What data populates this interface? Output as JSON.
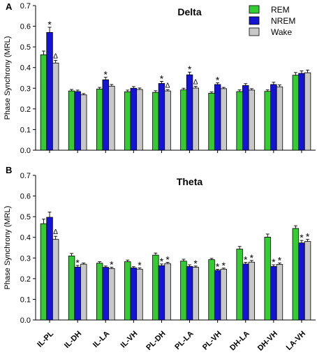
{
  "chart_data": [
    {
      "type": "bar",
      "panel_label": "A",
      "title": "Delta",
      "ylabel": "Phase Synchrony (MRL)",
      "xlabel": "",
      "ylim": [
        0,
        0.7
      ],
      "yticks": [
        "0.0",
        "0.1",
        "0.2",
        "0.3",
        "0.4",
        "0.5",
        "0.6",
        "0.7"
      ],
      "show_x_labels": false,
      "legend": {
        "placement": "top-right"
      },
      "categories": [
        "IL-PL",
        "IL-DH",
        "IL-LA",
        "IL-VH",
        "PL-DH",
        "PL-LA",
        "PL-VH",
        "DH-LA",
        "DH-VH",
        "LA-VH"
      ],
      "series": [
        {
          "name": "REM",
          "color": "#33cc33",
          "values": [
            0.462,
            0.287,
            0.296,
            0.283,
            0.28,
            0.292,
            0.276,
            0.284,
            0.285,
            0.363
          ],
          "errors": [
            0.018,
            0.007,
            0.008,
            0.008,
            0.008,
            0.008,
            0.006,
            0.008,
            0.007,
            0.013
          ],
          "marks": [
            "",
            "",
            "",
            "",
            "",
            "",
            "",
            "",
            "",
            ""
          ]
        },
        {
          "name": "NREM",
          "color": "#1414d2",
          "values": [
            0.57,
            0.284,
            0.341,
            0.3,
            0.323,
            0.365,
            0.318,
            0.313,
            0.318,
            0.372
          ],
          "errors": [
            0.025,
            0.007,
            0.012,
            0.008,
            0.01,
            0.013,
            0.008,
            0.009,
            0.011,
            0.012
          ],
          "marks": [
            "*",
            "",
            "*",
            "",
            "*",
            "*",
            "*",
            "",
            "",
            ""
          ]
        },
        {
          "name": "Wake",
          "color": "#c8c8c8",
          "values": [
            0.422,
            0.268,
            0.31,
            0.294,
            0.287,
            0.301,
            0.298,
            0.291,
            0.307,
            0.375
          ],
          "errors": [
            0.013,
            0.006,
            0.008,
            0.007,
            0.006,
            0.008,
            0.006,
            0.007,
            0.009,
            0.013
          ],
          "marks": [
            "Δ",
            "",
            "",
            "",
            "Δ",
            "Δ",
            "",
            "",
            "",
            ""
          ]
        }
      ]
    },
    {
      "type": "bar",
      "panel_label": "B",
      "title": "Theta",
      "ylabel": "Phase Synchrony (MRL)",
      "xlabel": "",
      "ylim": [
        0,
        0.7
      ],
      "yticks": [
        "0.0",
        "0.1",
        "0.2",
        "0.3",
        "0.4",
        "0.5",
        "0.6",
        "0.7"
      ],
      "show_x_labels": true,
      "categories": [
        "IL-PL",
        "IL-DH",
        "IL-LA",
        "IL-VH",
        "PL-DH",
        "PL-LA",
        "PL-VH",
        "DH-LA",
        "DH-VH",
        "LA-VH"
      ],
      "series": [
        {
          "name": "REM",
          "color": "#33cc33",
          "values": [
            0.466,
            0.31,
            0.275,
            0.282,
            0.314,
            0.285,
            0.292,
            0.343,
            0.401,
            0.443
          ],
          "errors": [
            0.022,
            0.012,
            0.007,
            0.008,
            0.01,
            0.009,
            0.006,
            0.013,
            0.015,
            0.013
          ],
          "marks": [
            "",
            "",
            "",
            "",
            "",
            "",
            "",
            "",
            "",
            ""
          ]
        },
        {
          "name": "NREM",
          "color": "#1414d2",
          "values": [
            0.497,
            0.256,
            0.255,
            0.252,
            0.263,
            0.259,
            0.24,
            0.271,
            0.259,
            0.373
          ],
          "errors": [
            0.025,
            0.008,
            0.006,
            0.006,
            0.008,
            0.008,
            0.005,
            0.008,
            0.008,
            0.012
          ],
          "marks": [
            "",
            "*",
            "",
            "",
            "*",
            "",
            "*",
            "*",
            "*",
            "*"
          ]
        },
        {
          "name": "Wake",
          "color": "#c8c8c8",
          "values": [
            0.39,
            0.27,
            0.249,
            0.246,
            0.273,
            0.255,
            0.246,
            0.28,
            0.269,
            0.38
          ],
          "errors": [
            0.015,
            0.006,
            0.006,
            0.006,
            0.006,
            0.006,
            0.005,
            0.008,
            0.007,
            0.01
          ],
          "marks": [
            "Δ",
            "",
            "*",
            "*",
            "*",
            "*",
            "*",
            "*",
            "*",
            "*"
          ]
        }
      ]
    }
  ]
}
